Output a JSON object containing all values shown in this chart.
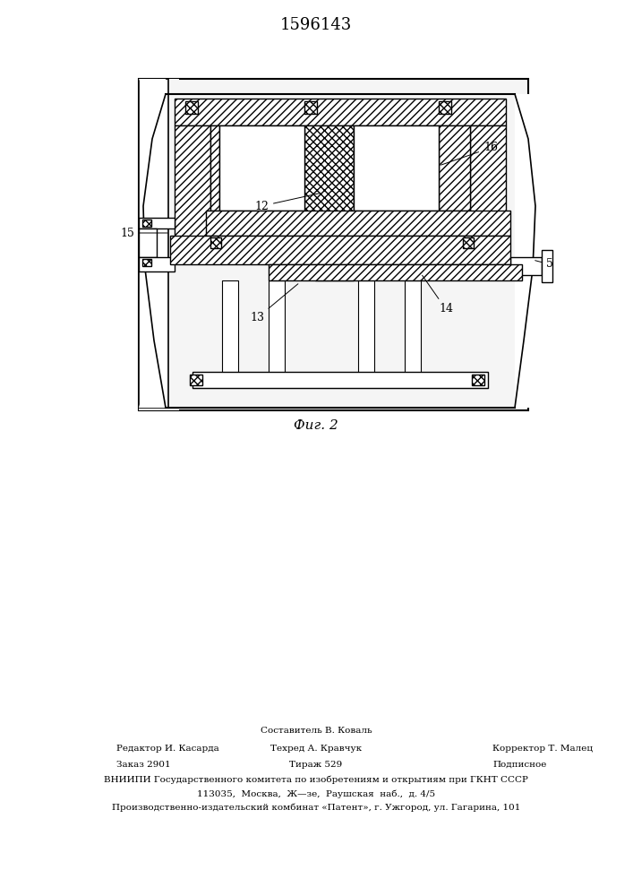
{
  "patent_number": "1596143",
  "fig_caption": "Фиг. 2",
  "footer_col1_line1": "Редактор И. Касарда",
  "footer_col1_line2": "Заказ 2901",
  "footer_col2_line0": "Составитель В. Коваль",
  "footer_col2_line1": "Техред А. Кравчук",
  "footer_col2_line2": "Тираж 529",
  "footer_col3_line1": "Корректор Т. Малец",
  "footer_col3_line2": "Подписное",
  "footer_vniipи": "ВНИИПИ Государственного комитета по изобретениям и открытиям при ГКНТ СССР",
  "footer_addr1": "113035,  Москва,  Ж—зе,  Раушская  наб.,  д. 4/5",
  "footer_addr2": "Производственно-издательский комбинат «Патент», г. Ужгород, ул. Гагарина, 101",
  "bg_color": "#ffffff"
}
